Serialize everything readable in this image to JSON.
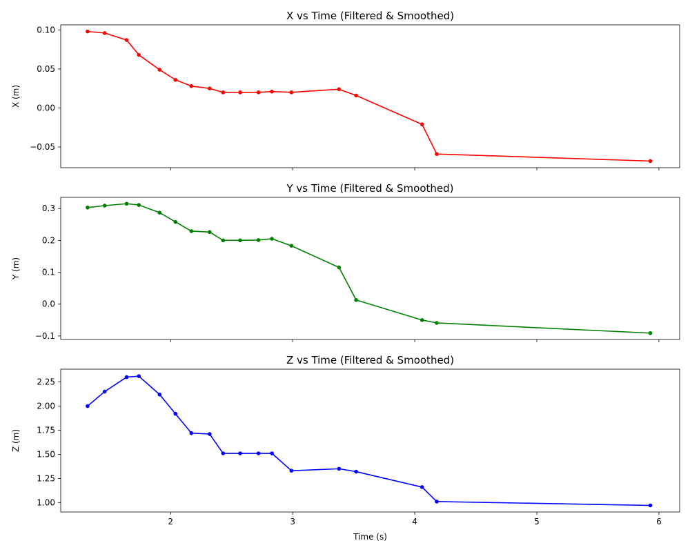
{
  "chart_data": [
    {
      "type": "line",
      "title": "X vs Time (Filtered & Smoothed)",
      "xlabel": "",
      "ylabel": "X (m)",
      "color": "#ff0000",
      "xlim": [
        1.1,
        6.17
      ],
      "ylim": [
        -0.0765,
        0.1065
      ],
      "yticks": [
        -0.05,
        0.0,
        0.05,
        0.1
      ],
      "ytick_labels": [
        "−0.05",
        "0.00",
        "0.05",
        "0.10"
      ],
      "xticks": [
        2,
        3,
        4,
        5,
        6
      ],
      "xtick_labels": [],
      "x": [
        1.32,
        1.46,
        1.64,
        1.74,
        1.91,
        2.04,
        2.17,
        2.32,
        2.43,
        2.57,
        2.72,
        2.83,
        2.99,
        3.38,
        3.52,
        4.06,
        4.18,
        5.93
      ],
      "y": [
        0.098,
        0.096,
        0.087,
        0.068,
        0.049,
        0.036,
        0.028,
        0.025,
        0.02,
        0.02,
        0.02,
        0.021,
        0.02,
        0.024,
        0.016,
        -0.021,
        -0.059,
        -0.068
      ]
    },
    {
      "type": "line",
      "title": "Y vs Time (Filtered & Smoothed)",
      "xlabel": "",
      "ylabel": "Y (m)",
      "color": "#008000",
      "xlim": [
        1.1,
        6.17
      ],
      "ylim": [
        -0.111,
        0.335
      ],
      "yticks": [
        -0.1,
        0.0,
        0.1,
        0.2,
        0.3
      ],
      "ytick_labels": [
        "−0.1",
        "0.0",
        "0.1",
        "0.2",
        "0.3"
      ],
      "xticks": [
        2,
        3,
        4,
        5,
        6
      ],
      "xtick_labels": [],
      "x": [
        1.32,
        1.46,
        1.64,
        1.74,
        1.91,
        2.04,
        2.17,
        2.32,
        2.43,
        2.57,
        2.72,
        2.83,
        2.99,
        3.38,
        3.52,
        4.06,
        4.18,
        5.93
      ],
      "y": [
        0.303,
        0.309,
        0.315,
        0.311,
        0.287,
        0.258,
        0.229,
        0.226,
        0.2,
        0.2,
        0.201,
        0.205,
        0.183,
        0.115,
        0.013,
        -0.05,
        -0.059,
        -0.091
      ]
    },
    {
      "type": "line",
      "title": "Z vs Time (Filtered & Smoothed)",
      "xlabel": "Time (s)",
      "ylabel": "Z (m)",
      "color": "#0000ff",
      "xlim": [
        1.1,
        6.17
      ],
      "ylim": [
        0.902,
        2.383
      ],
      "yticks": [
        1.0,
        1.25,
        1.5,
        1.75,
        2.0,
        2.25
      ],
      "ytick_labels": [
        "1.00",
        "1.25",
        "1.50",
        "1.75",
        "2.00",
        "2.25"
      ],
      "xticks": [
        2,
        3,
        4,
        5,
        6
      ],
      "xtick_labels": [
        "2",
        "3",
        "4",
        "5",
        "6"
      ],
      "x": [
        1.32,
        1.46,
        1.64,
        1.74,
        1.91,
        2.04,
        2.17,
        2.32,
        2.43,
        2.57,
        2.72,
        2.83,
        2.99,
        3.38,
        3.52,
        4.06,
        4.18,
        5.93
      ],
      "y": [
        2.0,
        2.15,
        2.3,
        2.31,
        2.12,
        1.92,
        1.72,
        1.71,
        1.51,
        1.51,
        1.51,
        1.51,
        1.33,
        1.35,
        1.32,
        1.16,
        1.01,
        0.97
      ]
    }
  ]
}
